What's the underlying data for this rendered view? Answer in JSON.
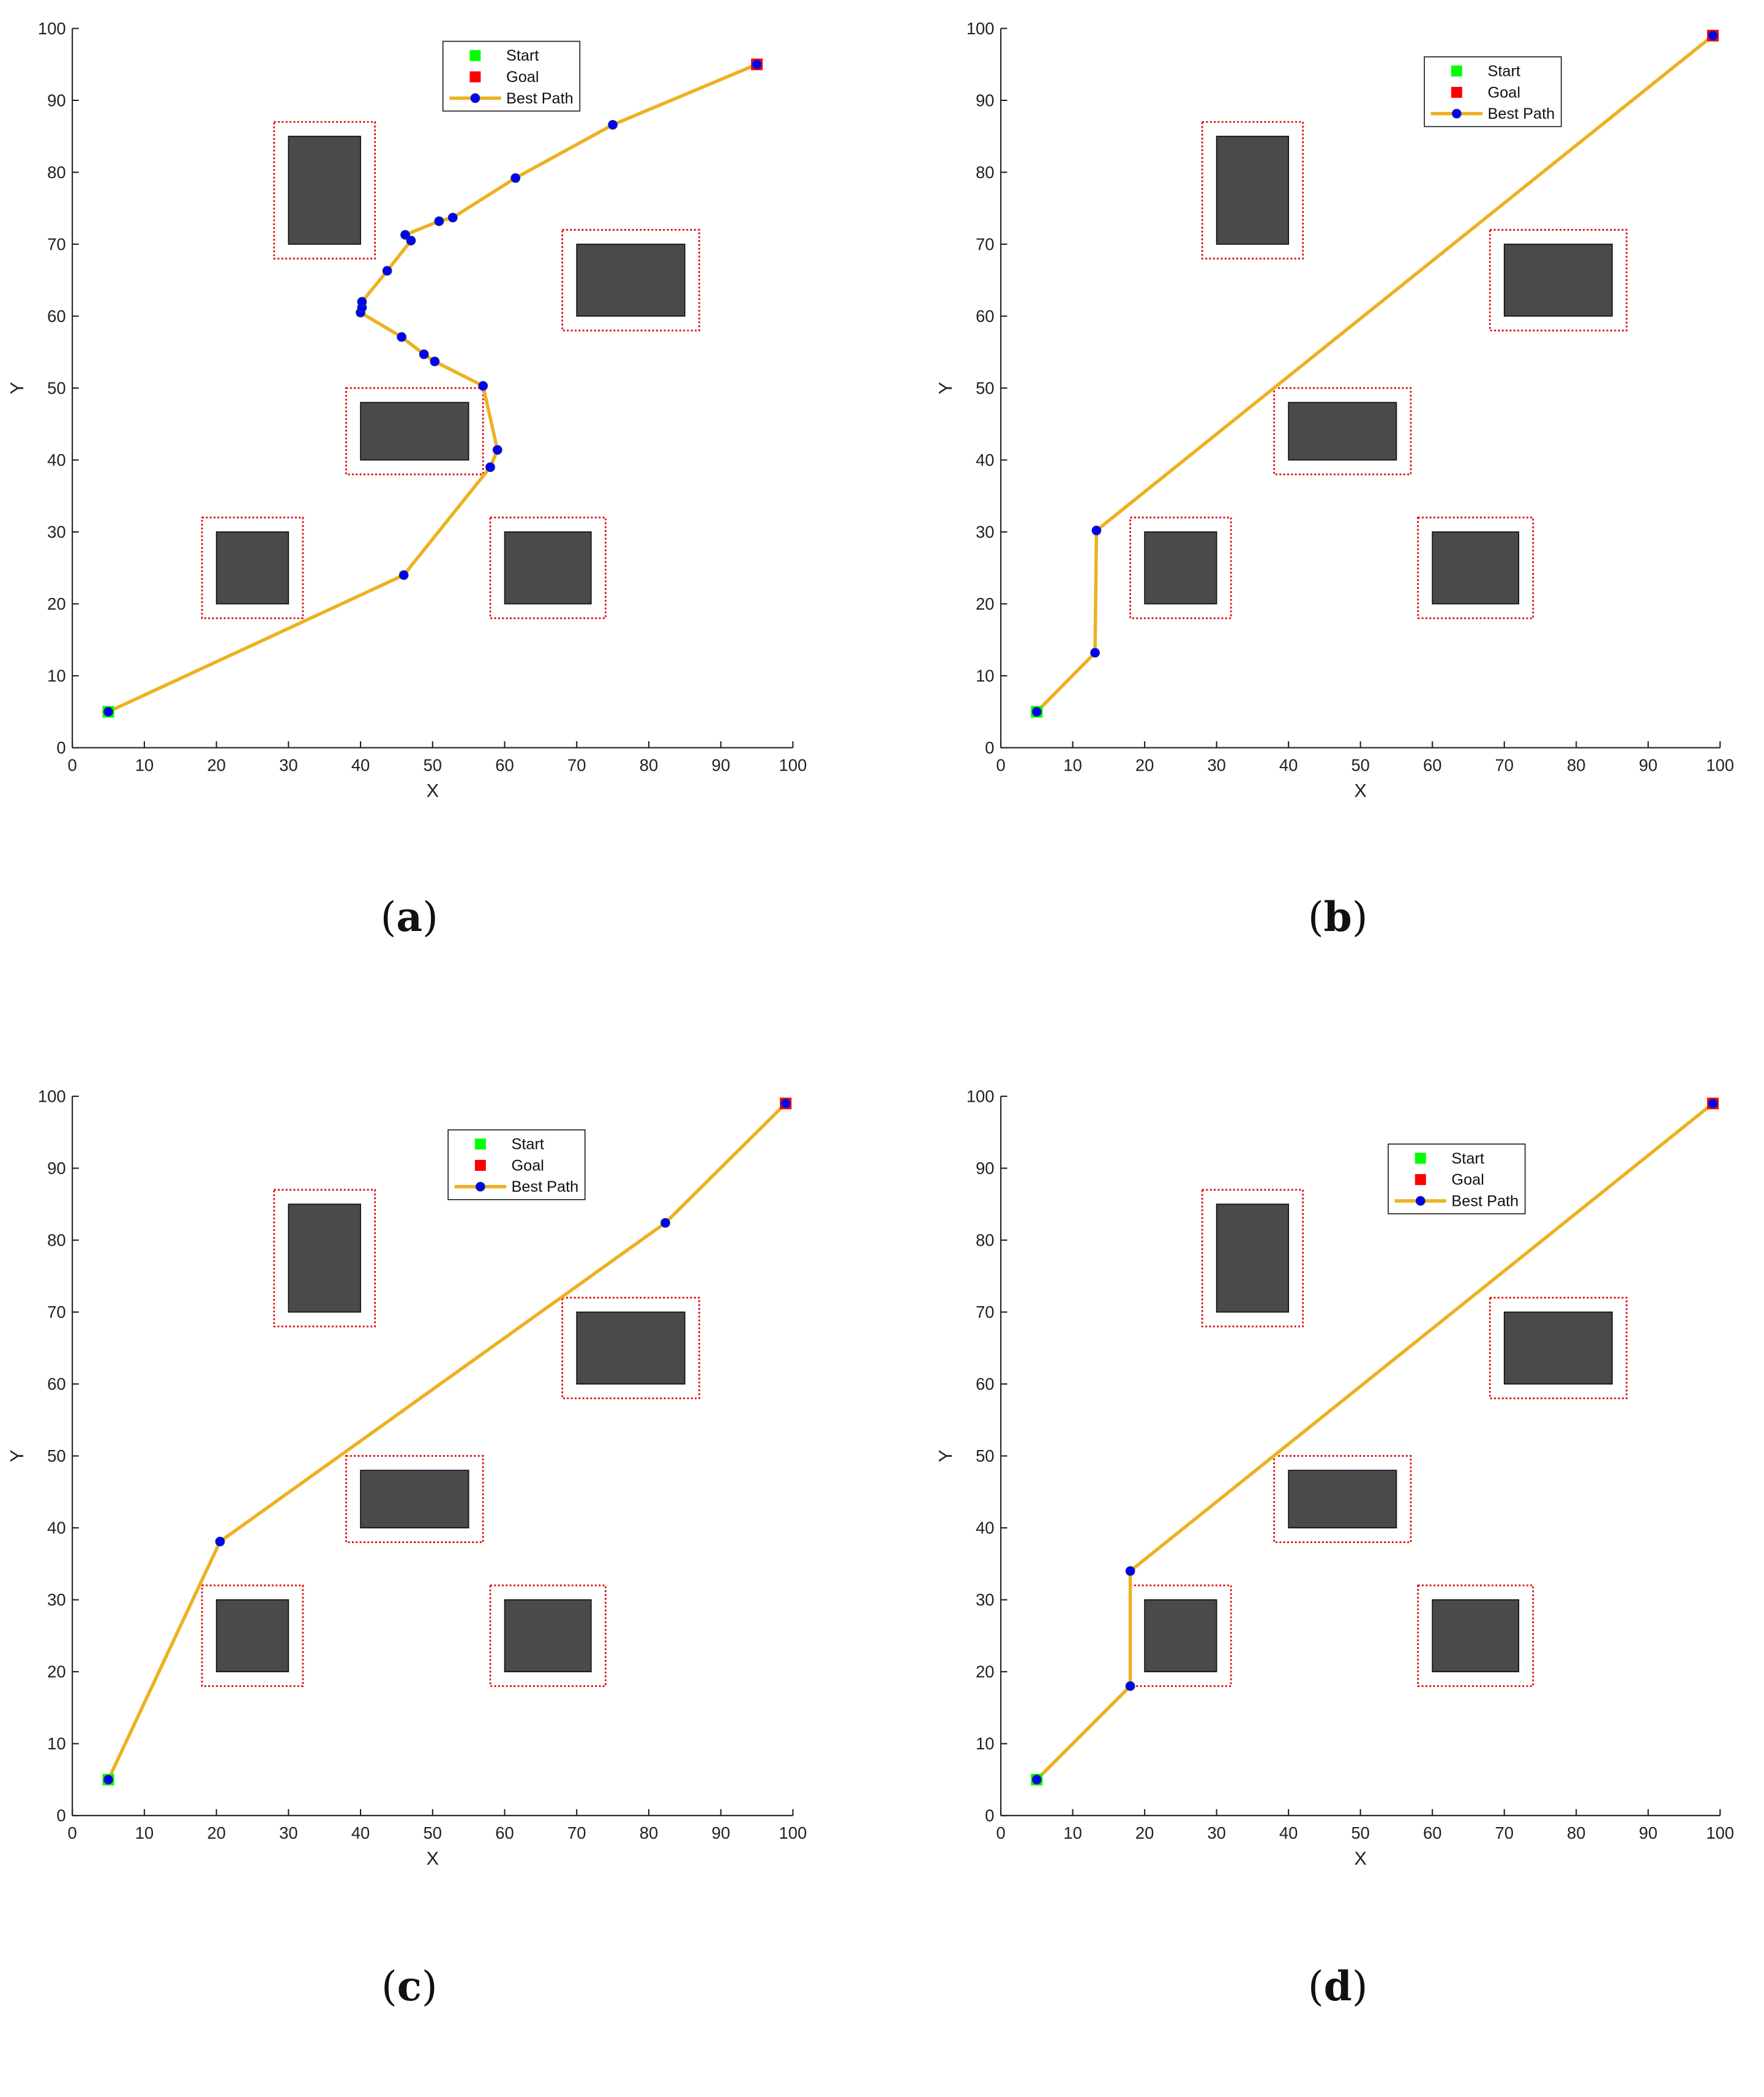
{
  "figure": {
    "panels": [
      {
        "caption": "a",
        "legend": {
          "start": "Start",
          "goal": "Goal",
          "path": "Best Path"
        },
        "chart_data": {
          "type": "line",
          "xlabel": "X",
          "ylabel": "Y",
          "xlim": [
            0,
            100
          ],
          "ylim": [
            0,
            100
          ],
          "xticks": [
            0,
            10,
            20,
            30,
            40,
            50,
            60,
            70,
            80,
            90,
            100
          ],
          "yticks": [
            0,
            10,
            20,
            30,
            40,
            50,
            60,
            70,
            80,
            90,
            100
          ],
          "grid": false,
          "legend_position": "top-center",
          "start": [
            5,
            5
          ],
          "goal": [
            95,
            95
          ],
          "obstacles": [
            [
              30,
              70,
              40,
              85
            ],
            [
              70,
              60,
              85,
              70
            ],
            [
              40,
              40,
              55,
              48
            ],
            [
              20,
              20,
              30,
              30
            ],
            [
              60,
              20,
              72,
              30
            ]
          ],
          "safety_zones": [
            [
              28,
              68,
              42,
              87
            ],
            [
              68,
              58,
              87,
              72
            ],
            [
              38,
              38,
              57,
              50
            ],
            [
              18,
              18,
              32,
              32
            ],
            [
              58,
              18,
              74,
              32
            ]
          ],
          "series": [
            {
              "name": "Best Path",
              "x": [
                5,
                46,
                58,
                59,
                57,
                50.3,
                48.8,
                45.7,
                40,
                40.2,
                40.2,
                43.7,
                47,
                46.2,
                50.9,
                52.8,
                61.5,
                75,
                95
              ],
              "y": [
                5,
                24,
                39,
                41.4,
                50.3,
                53.7,
                54.7,
                57.1,
                60.5,
                61.2,
                62,
                66.3,
                70.5,
                71.3,
                73.2,
                73.7,
                79.2,
                86.6,
                95
              ]
            }
          ]
        }
      },
      {
        "caption": "b",
        "legend": {
          "start": "Start",
          "goal": "Goal",
          "path": "Best Path"
        },
        "chart_data": {
          "type": "line",
          "xlabel": "X",
          "ylabel": "Y",
          "xlim": [
            0,
            100
          ],
          "ylim": [
            0,
            100
          ],
          "xticks": [
            0,
            10,
            20,
            30,
            40,
            50,
            60,
            70,
            80,
            90,
            100
          ],
          "yticks": [
            0,
            10,
            20,
            30,
            40,
            50,
            60,
            70,
            80,
            90,
            100
          ],
          "grid": false,
          "legend_position": "top-center",
          "start": [
            5,
            5
          ],
          "goal": [
            99,
            99
          ],
          "obstacles": [
            [
              30,
              70,
              40,
              85
            ],
            [
              70,
              60,
              85,
              70
            ],
            [
              40,
              40,
              55,
              48
            ],
            [
              20,
              20,
              30,
              30
            ],
            [
              60,
              20,
              72,
              30
            ]
          ],
          "safety_zones": [
            [
              28,
              68,
              42,
              87
            ],
            [
              68,
              58,
              87,
              72
            ],
            [
              38,
              38,
              57,
              50
            ],
            [
              18,
              18,
              32,
              32
            ],
            [
              58,
              18,
              74,
              32
            ]
          ],
          "series": [
            {
              "name": "Best Path",
              "x": [
                5,
                13.1,
                13.3,
                99
              ],
              "y": [
                5,
                13.2,
                30.2,
                99
              ]
            }
          ]
        }
      },
      {
        "caption": "c",
        "legend": {
          "start": "Start",
          "goal": "Goal",
          "path": "Best Path"
        },
        "chart_data": {
          "type": "line",
          "xlabel": "X",
          "ylabel": "Y",
          "xlim": [
            0,
            100
          ],
          "ylim": [
            0,
            100
          ],
          "xticks": [
            0,
            10,
            20,
            30,
            40,
            50,
            60,
            70,
            80,
            90,
            100
          ],
          "yticks": [
            0,
            10,
            20,
            30,
            40,
            50,
            60,
            70,
            80,
            90,
            100
          ],
          "grid": false,
          "legend_position": "top-center",
          "start": [
            5,
            5
          ],
          "goal": [
            99,
            99
          ],
          "obstacles": [
            [
              30,
              70,
              40,
              85
            ],
            [
              70,
              60,
              85,
              70
            ],
            [
              40,
              40,
              55,
              48
            ],
            [
              20,
              20,
              30,
              30
            ],
            [
              60,
              20,
              72,
              30
            ]
          ],
          "safety_zones": [
            [
              28,
              68,
              42,
              87
            ],
            [
              68,
              58,
              87,
              72
            ],
            [
              38,
              38,
              57,
              50
            ],
            [
              18,
              18,
              32,
              32
            ],
            [
              58,
              18,
              74,
              32
            ]
          ],
          "series": [
            {
              "name": "Best Path",
              "x": [
                5,
                20.5,
                82.3,
                99
              ],
              "y": [
                5,
                38.1,
                82.4,
                99
              ]
            }
          ]
        }
      },
      {
        "caption": "d",
        "legend": {
          "start": "Start",
          "goal": "Goal",
          "path": "Best Path"
        },
        "chart_data": {
          "type": "line",
          "xlabel": "X",
          "ylabel": "Y",
          "xlim": [
            0,
            100
          ],
          "ylim": [
            0,
            100
          ],
          "xticks": [
            0,
            10,
            20,
            30,
            40,
            50,
            60,
            70,
            80,
            90,
            100
          ],
          "yticks": [
            0,
            10,
            20,
            30,
            40,
            50,
            60,
            70,
            80,
            90,
            100
          ],
          "grid": false,
          "legend_position": "top-center",
          "start": [
            5,
            5
          ],
          "goal": [
            99,
            99
          ],
          "obstacles": [
            [
              30,
              70,
              40,
              85
            ],
            [
              70,
              60,
              85,
              70
            ],
            [
              40,
              40,
              55,
              48
            ],
            [
              20,
              20,
              30,
              30
            ],
            [
              60,
              20,
              72,
              30
            ]
          ],
          "safety_zones": [
            [
              28,
              68,
              42,
              87
            ],
            [
              68,
              58,
              87,
              72
            ],
            [
              38,
              38,
              57,
              50
            ],
            [
              18,
              18,
              32,
              32
            ],
            [
              58,
              18,
              74,
              32
            ]
          ],
          "series": [
            {
              "name": "Best Path",
              "x": [
                5,
                18,
                18,
                99
              ],
              "y": [
                5,
                18,
                34,
                99
              ]
            }
          ]
        }
      }
    ]
  },
  "colors": {
    "path": "#EDB120",
    "waypoint_fill": "#0000FF",
    "waypoint_edge": "#1a2a8a",
    "start": "#00FF00",
    "goal": "#FF0000",
    "obstacle": "#4a4a4a",
    "safety_zone": "#E00000",
    "axis": "#222222"
  }
}
